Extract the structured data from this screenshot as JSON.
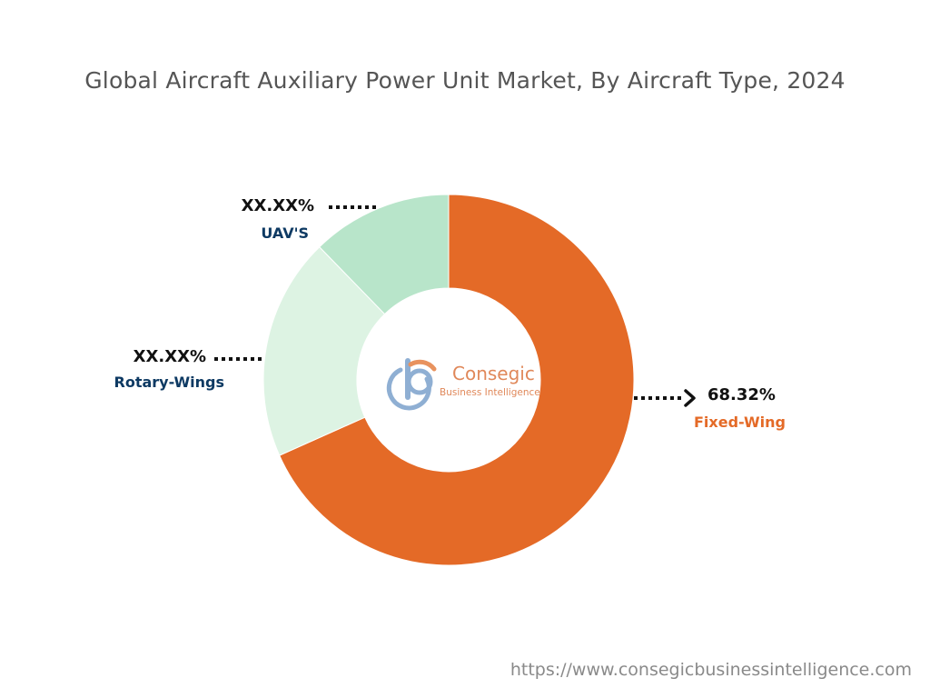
{
  "title": "Global Aircraft Auxiliary Power Unit Market, By Aircraft Type, 2024",
  "footer_url": "https://www.consegicbusinessintelligence.com",
  "logo": {
    "name": "Consegic",
    "tagline": "Business Intelligence",
    "colors": {
      "b": "#8FAFD3",
      "accent": "#E8925E",
      "text": "#E0885A"
    }
  },
  "chart_data": {
    "type": "pie",
    "subtype": "donut",
    "title": "Global Aircraft Auxiliary Power Unit Market, By Aircraft Type, 2024",
    "slices": [
      {
        "label": "Fixed-Wing",
        "value": 68.32,
        "value_label": "68.32%",
        "color": "#E46A27",
        "label_color": "#E46A27"
      },
      {
        "label": "Rotary-Wings",
        "value": 19.4,
        "value_label": "XX.XX%",
        "color": "#DDF3E3",
        "label_color": "#0E3A63"
      },
      {
        "label": "UAV'S",
        "value": 12.28,
        "value_label": "XX.XX%",
        "color": "#B8E5CA",
        "label_color": "#0E3A63"
      }
    ]
  }
}
